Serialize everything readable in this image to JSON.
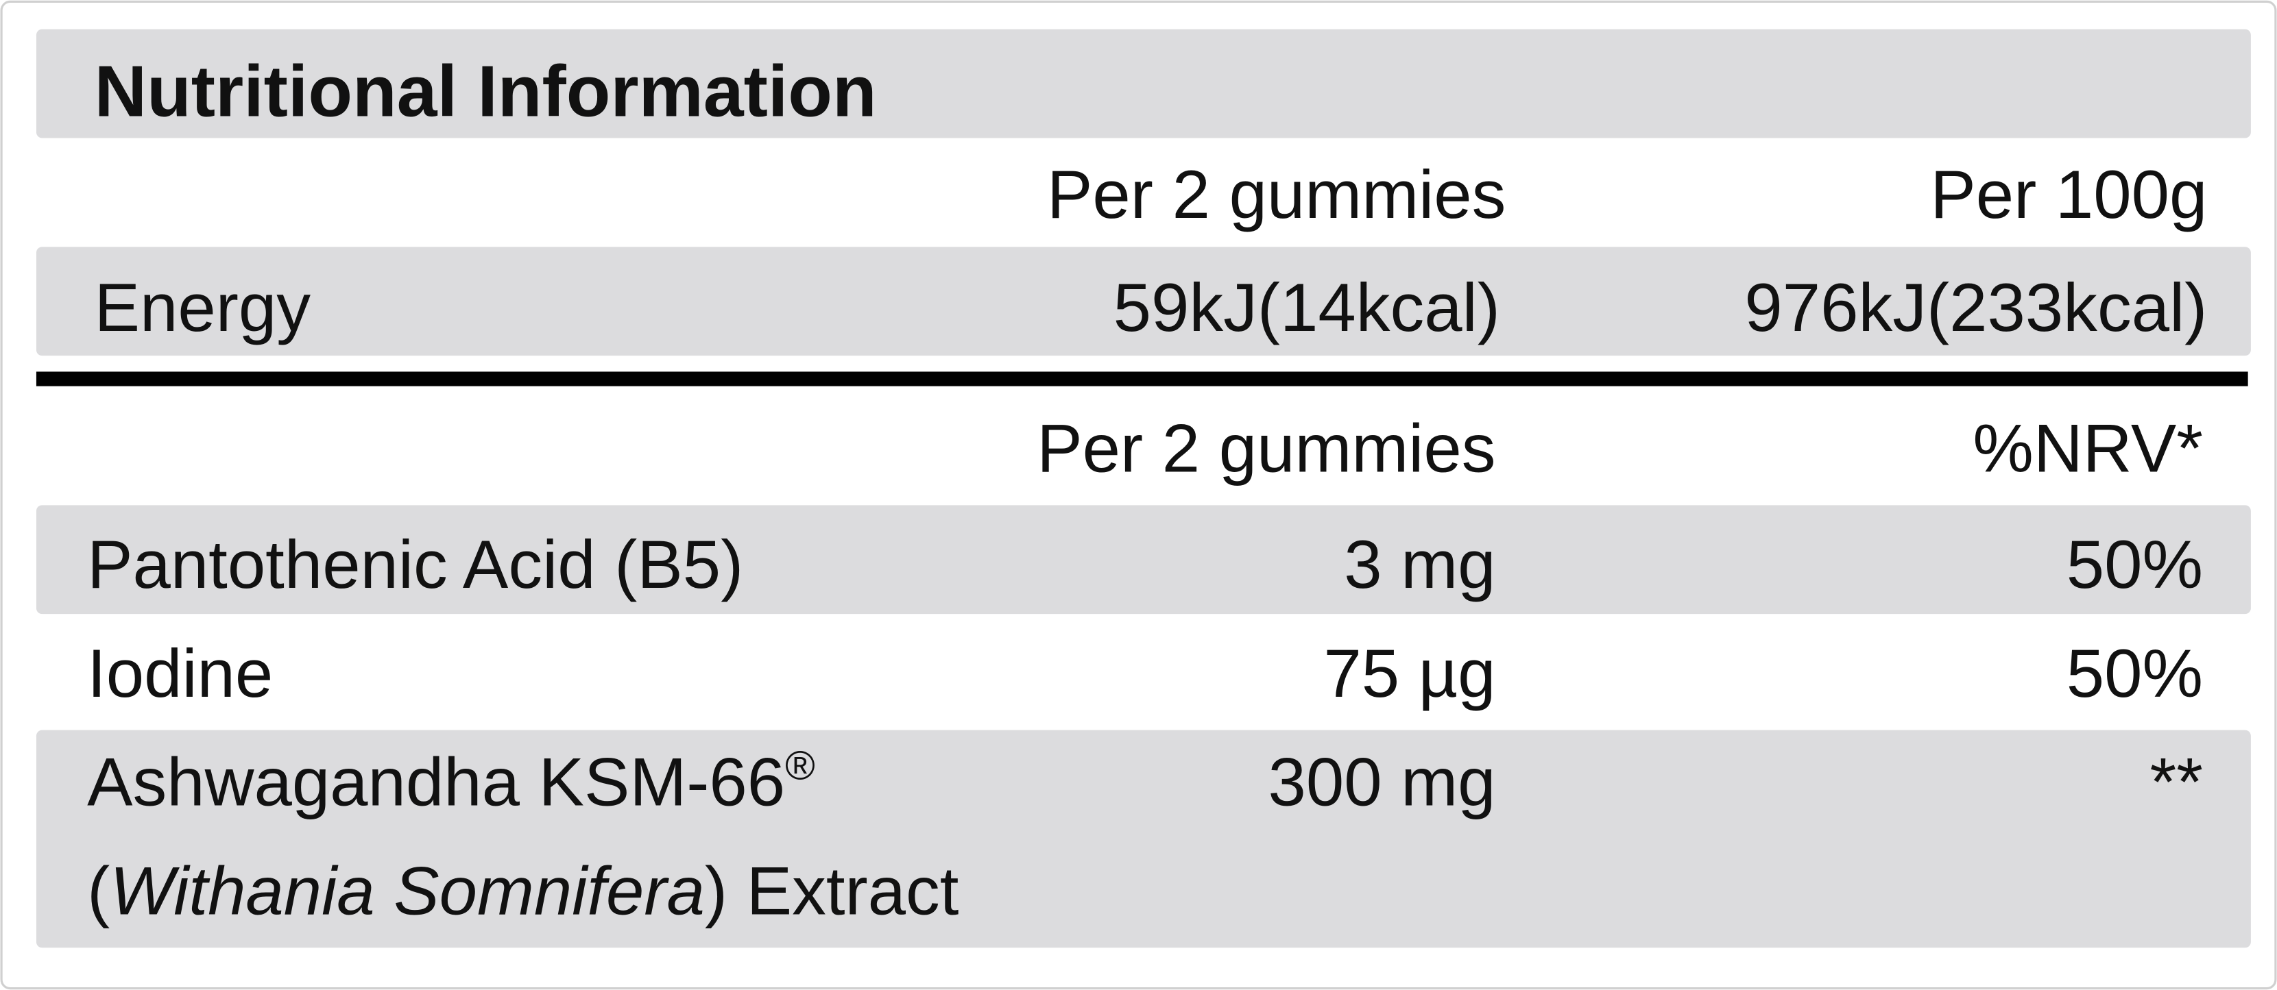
{
  "title": "Nutritional Information",
  "energy_table": {
    "header": [
      "Per 2 gummies",
      "Per 100g"
    ],
    "rows": [
      [
        "Energy",
        "59kJ(14kcal)",
        "976kJ(233kcal)"
      ]
    ]
  },
  "nutrient_table": {
    "header": [
      "Per 2 gummies",
      "%NRV*"
    ],
    "rows": [
      {
        "lines": [
          [
            "Pantothenic Acid (B5)"
          ]
        ],
        "amount": "3 mg",
        "nrv": "50%"
      },
      {
        "lines": [
          [
            "Iodine"
          ]
        ],
        "amount": "75 µg",
        "nrv": "50%"
      },
      {
        "lines": [
          [
            "Ashwagandha KSM-66",
            "®"
          ],
          [
            "(",
            "Withania Somnifera",
            ") Extract"
          ]
        ],
        "amount": "300 mg",
        "nrv": "**"
      }
    ]
  }
}
